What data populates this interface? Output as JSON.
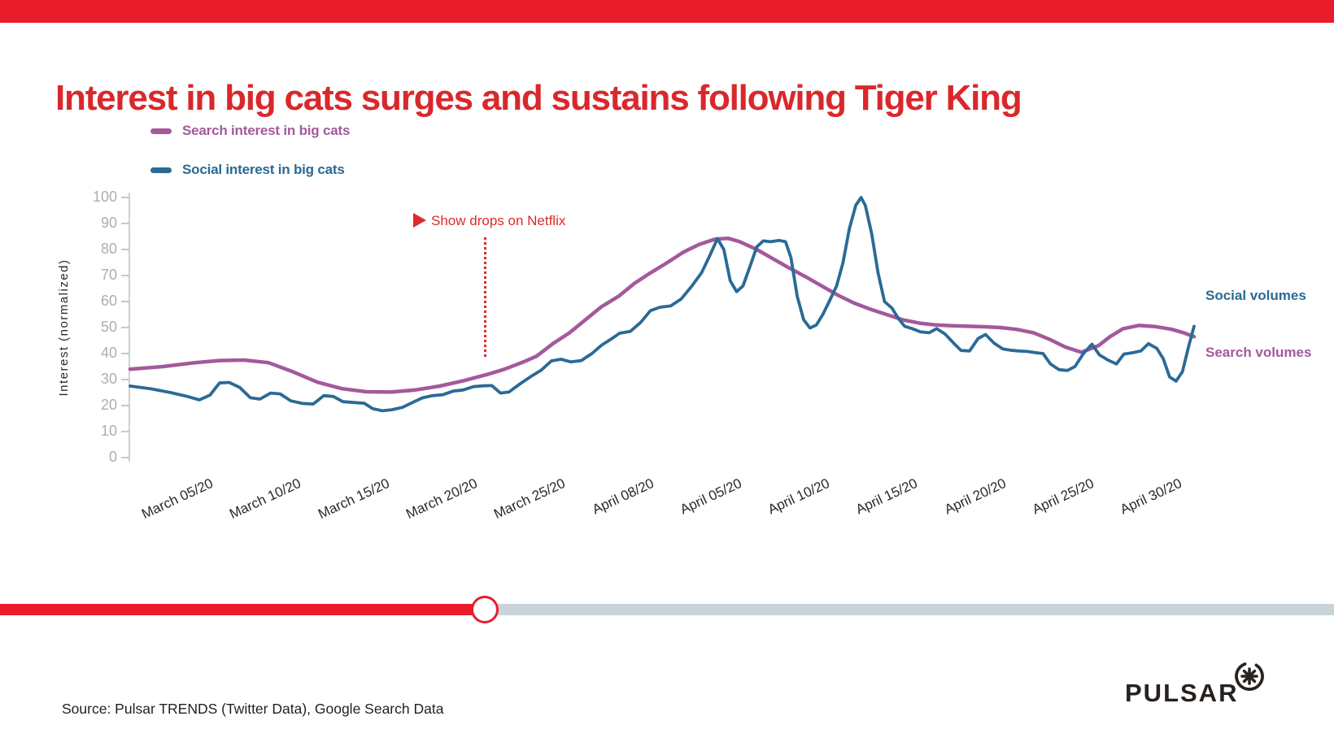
{
  "accent": {
    "title_red": "#d9282c",
    "bar_red": "#ea1c2c",
    "annotation_red": "#db2b2b",
    "purple": "#a3599c",
    "blue": "#2a6a96",
    "progress_gray": "#c9d3da",
    "axis_gray": "#cdd1d4",
    "tick_label_gray": "#a9aeb4"
  },
  "title": "Interest in big cats surges and sustains following Tiger King",
  "legend": [
    {
      "label": "Search interest in big cats",
      "color": "#a3599c"
    },
    {
      "label": "Social interest in big cats",
      "color": "#2a6a96"
    }
  ],
  "annotation": {
    "label": "Show drops on Netflix"
  },
  "right_labels": {
    "social": "Social volumes",
    "search": "Search volumes"
  },
  "source": "Source: Pulsar TRENDS (Twitter Data), Google Search Data",
  "logo": {
    "text": "PULSAR"
  },
  "progress": {
    "fraction": 0.363
  },
  "chart_data": {
    "type": "line",
    "title": "Interest in big cats surges and sustains following Tiger King",
    "xlabel": "",
    "ylabel": "Interest (normalized)",
    "ylim": [
      0,
      100
    ],
    "yticks": [
      0,
      10,
      20,
      30,
      40,
      50,
      60,
      70,
      80,
      90,
      100
    ],
    "grid": false,
    "legend_position": "top-left",
    "xticklabels": [
      "March 05/20",
      "March 10/20",
      "March 15/20",
      "March 20/20",
      "March 25/20",
      "April 08/20",
      "April 05/20",
      "April 10/20",
      "April 15/20",
      "April 20/20",
      "April 25/20",
      "April 30/20"
    ],
    "annotation": {
      "text": "Show drops on Netflix",
      "x_fraction": 0.334
    },
    "series": [
      {
        "name": "Search interest in big cats",
        "color": "#a3599c",
        "points": [
          [
            0,
            34
          ],
          [
            0.031,
            35
          ],
          [
            0.061,
            36.5
          ],
          [
            0.084,
            37.3
          ],
          [
            0.107,
            37.5
          ],
          [
            0.13,
            36.5
          ],
          [
            0.153,
            33
          ],
          [
            0.176,
            29
          ],
          [
            0.199,
            26.5
          ],
          [
            0.222,
            25.3
          ],
          [
            0.245,
            25.2
          ],
          [
            0.268,
            26
          ],
          [
            0.291,
            27.5
          ],
          [
            0.313,
            29.5
          ],
          [
            0.336,
            32
          ],
          [
            0.352,
            34
          ],
          [
            0.371,
            37
          ],
          [
            0.382,
            39
          ],
          [
            0.398,
            44
          ],
          [
            0.413,
            48
          ],
          [
            0.428,
            53
          ],
          [
            0.443,
            58
          ],
          [
            0.459,
            62
          ],
          [
            0.474,
            67
          ],
          [
            0.489,
            71
          ],
          [
            0.505,
            75
          ],
          [
            0.52,
            79
          ],
          [
            0.535,
            82
          ],
          [
            0.55,
            84
          ],
          [
            0.562,
            84.3
          ],
          [
            0.573,
            83
          ],
          [
            0.589,
            80
          ],
          [
            0.604,
            76.5
          ],
          [
            0.619,
            73
          ],
          [
            0.635,
            69.5
          ],
          [
            0.65,
            66
          ],
          [
            0.665,
            62.5
          ],
          [
            0.68,
            59.5
          ],
          [
            0.696,
            57
          ],
          [
            0.711,
            55
          ],
          [
            0.726,
            53
          ],
          [
            0.742,
            51.7
          ],
          [
            0.757,
            51
          ],
          [
            0.772,
            50.7
          ],
          [
            0.787,
            50.5
          ],
          [
            0.803,
            50.3
          ],
          [
            0.818,
            50
          ],
          [
            0.833,
            49.3
          ],
          [
            0.849,
            48
          ],
          [
            0.864,
            45.5
          ],
          [
            0.879,
            42.5
          ],
          [
            0.894,
            40.5
          ],
          [
            0.91,
            43
          ],
          [
            0.921,
            46.5
          ],
          [
            0.933,
            49.5
          ],
          [
            0.948,
            50.8
          ],
          [
            0.963,
            50.4
          ],
          [
            0.979,
            49.3
          ],
          [
            0.99,
            48
          ],
          [
            1,
            46.5
          ]
        ]
      },
      {
        "name": "Social interest in big cats",
        "color": "#2a6a96",
        "points": [
          [
            0,
            27.5
          ],
          [
            0.019,
            26.5
          ],
          [
            0.038,
            25
          ],
          [
            0.054,
            23.5
          ],
          [
            0.065,
            22.2
          ],
          [
            0.075,
            24
          ],
          [
            0.084,
            28.7
          ],
          [
            0.093,
            28.9
          ],
          [
            0.103,
            27
          ],
          [
            0.113,
            23
          ],
          [
            0.122,
            22.5
          ],
          [
            0.132,
            24.8
          ],
          [
            0.141,
            24.5
          ],
          [
            0.151,
            21.8
          ],
          [
            0.162,
            20.8
          ],
          [
            0.172,
            20.6
          ],
          [
            0.182,
            23.8
          ],
          [
            0.191,
            23.5
          ],
          [
            0.2,
            21.5
          ],
          [
            0.21,
            21.2
          ],
          [
            0.22,
            20.9
          ],
          [
            0.228,
            18.8
          ],
          [
            0.237,
            18
          ],
          [
            0.246,
            18.4
          ],
          [
            0.256,
            19.3
          ],
          [
            0.266,
            21.3
          ],
          [
            0.275,
            23
          ],
          [
            0.284,
            23.8
          ],
          [
            0.294,
            24.2
          ],
          [
            0.304,
            25.6
          ],
          [
            0.313,
            26
          ],
          [
            0.323,
            27.3
          ],
          [
            0.332,
            27.6
          ],
          [
            0.34,
            27.7
          ],
          [
            0.348,
            24.8
          ],
          [
            0.356,
            25.2
          ],
          [
            0.367,
            28.5
          ],
          [
            0.376,
            31
          ],
          [
            0.386,
            33.5
          ],
          [
            0.396,
            37.2
          ],
          [
            0.405,
            37.8
          ],
          [
            0.414,
            36.8
          ],
          [
            0.424,
            37.3
          ],
          [
            0.434,
            40
          ],
          [
            0.443,
            43.2
          ],
          [
            0.453,
            45.8
          ],
          [
            0.46,
            47.8
          ],
          [
            0.47,
            48.5
          ],
          [
            0.48,
            52
          ],
          [
            0.489,
            56.5
          ],
          [
            0.498,
            57.8
          ],
          [
            0.508,
            58.3
          ],
          [
            0.518,
            61
          ],
          [
            0.528,
            66
          ],
          [
            0.537,
            71
          ],
          [
            0.544,
            77
          ],
          [
            0.552,
            84.2
          ],
          [
            0.558,
            80
          ],
          [
            0.564,
            68
          ],
          [
            0.57,
            63.8
          ],
          [
            0.576,
            66
          ],
          [
            0.583,
            74
          ],
          [
            0.589,
            81
          ],
          [
            0.595,
            83.3
          ],
          [
            0.602,
            83
          ],
          [
            0.61,
            83.5
          ],
          [
            0.616,
            83
          ],
          [
            0.621,
            77
          ],
          [
            0.627,
            62
          ],
          [
            0.633,
            53
          ],
          [
            0.639,
            49.8
          ],
          [
            0.645,
            51
          ],
          [
            0.651,
            55
          ],
          [
            0.657,
            60
          ],
          [
            0.664,
            66
          ],
          [
            0.67,
            75
          ],
          [
            0.676,
            88
          ],
          [
            0.682,
            97
          ],
          [
            0.687,
            100
          ],
          [
            0.691,
            97
          ],
          [
            0.697,
            86
          ],
          [
            0.703,
            71
          ],
          [
            0.709,
            60
          ],
          [
            0.716,
            57.5
          ],
          [
            0.722,
            53.5
          ],
          [
            0.728,
            50.5
          ],
          [
            0.735,
            49.6
          ],
          [
            0.743,
            48.3
          ],
          [
            0.751,
            48
          ],
          [
            0.758,
            49.6
          ],
          [
            0.766,
            47.5
          ],
          [
            0.774,
            44
          ],
          [
            0.781,
            41.2
          ],
          [
            0.789,
            41
          ],
          [
            0.797,
            45.8
          ],
          [
            0.804,
            47.3
          ],
          [
            0.812,
            44
          ],
          [
            0.82,
            41.8
          ],
          [
            0.827,
            41.3
          ],
          [
            0.835,
            41
          ],
          [
            0.843,
            40.8
          ],
          [
            0.85,
            40.4
          ],
          [
            0.858,
            40
          ],
          [
            0.865,
            36
          ],
          [
            0.873,
            33.8
          ],
          [
            0.881,
            33.5
          ],
          [
            0.888,
            35
          ],
          [
            0.896,
            40
          ],
          [
            0.904,
            43.6
          ],
          [
            0.911,
            39.5
          ],
          [
            0.919,
            37.5
          ],
          [
            0.927,
            36
          ],
          [
            0.934,
            39.8
          ],
          [
            0.942,
            40.3
          ],
          [
            0.95,
            41
          ],
          [
            0.957,
            43.8
          ],
          [
            0.965,
            42
          ],
          [
            0.971,
            38
          ],
          [
            0.977,
            31
          ],
          [
            0.983,
            29.4
          ],
          [
            0.989,
            33
          ],
          [
            0.995,
            43
          ],
          [
            1,
            50.5
          ]
        ]
      }
    ]
  }
}
